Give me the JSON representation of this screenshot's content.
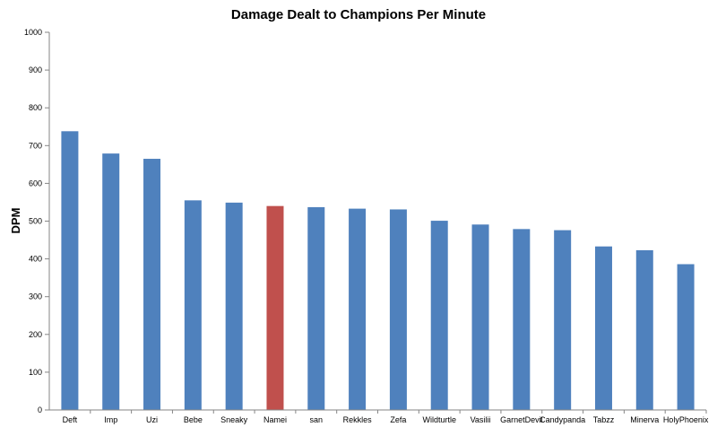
{
  "chart_data": {
    "type": "bar",
    "title": "Damage Dealt to Champions Per Minute",
    "xlabel": "",
    "ylabel": "DPM",
    "ylim": [
      0,
      1000
    ],
    "yticks": [
      0,
      100,
      200,
      300,
      400,
      500,
      600,
      700,
      800,
      900,
      1000
    ],
    "grid": false,
    "legend": "none",
    "categories": [
      "Deft",
      "Imp",
      "Uzi",
      "Bebe",
      "Sneaky",
      "Namei",
      "san",
      "Rekkles",
      "Zefa",
      "Wildturtle",
      "Vasilii",
      "GarnetDevil",
      "Candypanda",
      "Tabzz",
      "Minerva",
      "HolyPhoenix"
    ],
    "values": [
      738,
      679,
      665,
      555,
      549,
      540,
      537,
      533,
      531,
      501,
      491,
      479,
      476,
      433,
      423,
      386
    ],
    "colors": {
      "default": "#4f81bd",
      "highlight": "#c0504d",
      "axis": "#868686"
    },
    "highlight_category": "Namei"
  }
}
